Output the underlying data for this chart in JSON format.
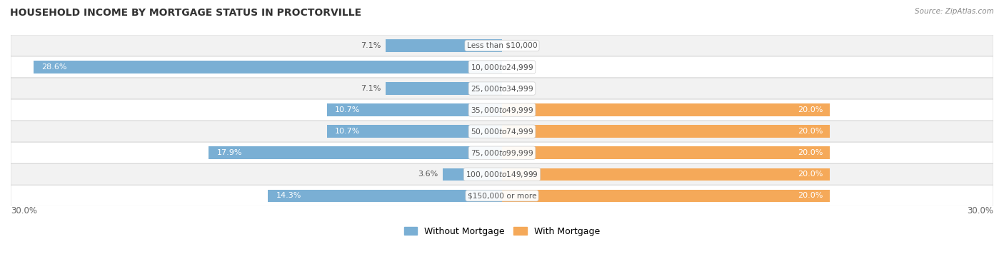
{
  "title": "HOUSEHOLD INCOME BY MORTGAGE STATUS IN PROCTORVILLE",
  "source": "Source: ZipAtlas.com",
  "categories": [
    "Less than $10,000",
    "$10,000 to $24,999",
    "$25,000 to $34,999",
    "$35,000 to $49,999",
    "$50,000 to $74,999",
    "$75,000 to $99,999",
    "$100,000 to $149,999",
    "$150,000 or more"
  ],
  "without_mortgage": [
    7.1,
    28.6,
    7.1,
    10.7,
    10.7,
    17.9,
    3.6,
    14.3
  ],
  "with_mortgage": [
    0.0,
    0.0,
    0.0,
    20.0,
    20.0,
    20.0,
    20.0,
    20.0
  ],
  "color_without": "#7aafd4",
  "color_with": "#f5a959",
  "color_label_dark": "#555555",
  "color_label_white": "#ffffff",
  "background_row_light": "#f2f2f2",
  "background_row_white": "#ffffff",
  "xlim": [
    -30,
    30
  ],
  "x_axis_label_left": "30.0%",
  "x_axis_label_right": "30.0%",
  "legend_without": "Without Mortgage",
  "legend_with": "With Mortgage",
  "title_fontsize": 10,
  "label_fontsize": 8,
  "tick_fontsize": 8.5
}
